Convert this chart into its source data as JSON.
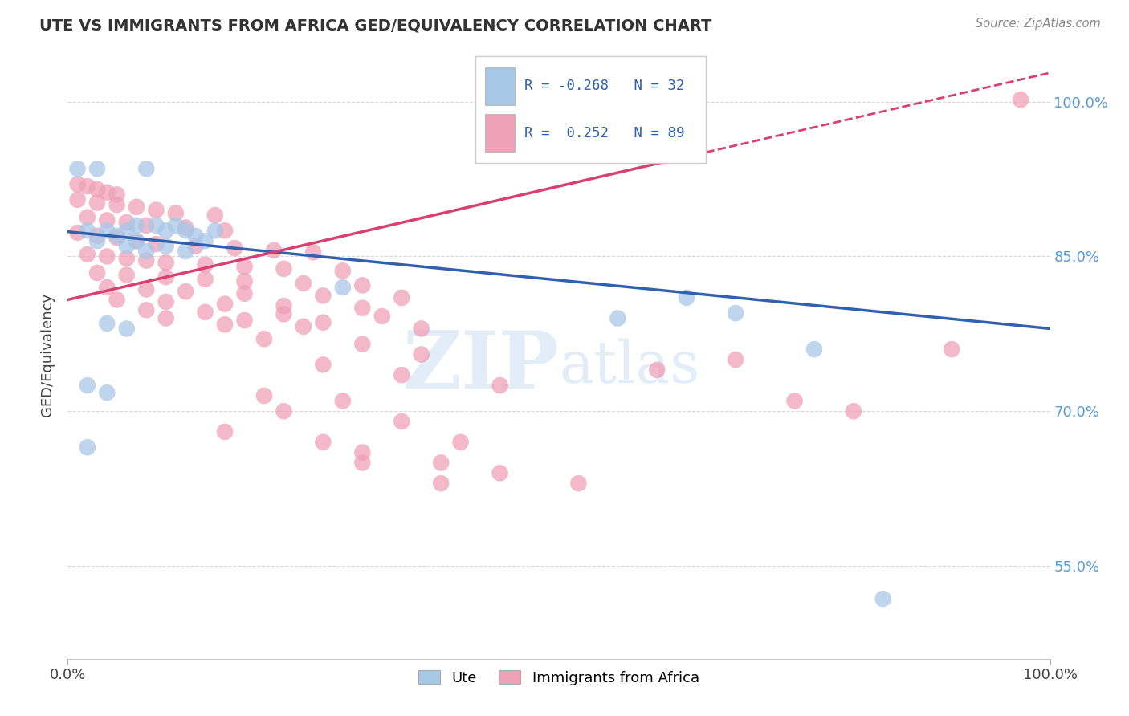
{
  "title": "UTE VS IMMIGRANTS FROM AFRICA GED/EQUIVALENCY CORRELATION CHART",
  "source": "Source: ZipAtlas.com",
  "ylabel": "GED/Equivalency",
  "watermark": "ZIPatlas",
  "ute_R": -0.268,
  "ute_N": 32,
  "africa_R": 0.252,
  "africa_N": 89,
  "ute_color": "#a8c8e8",
  "africa_color": "#f0a0b8",
  "ute_line_color": "#3060b0",
  "africa_line_color": "#d84070",
  "background_color": "#ffffff",
  "grid_color": "#d0d0d0",
  "ytick_labels": [
    "55.0%",
    "70.0%",
    "85.0%",
    "100.0%"
  ],
  "ytick_values": [
    0.55,
    0.7,
    0.85,
    1.0
  ],
  "xlim": [
    0.0,
    1.0
  ],
  "ylim": [
    0.46,
    1.05
  ],
  "ute_intercept": 0.874,
  "ute_slope": -0.094,
  "africa_intercept": 0.808,
  "africa_slope": 0.22,
  "ute_points_x": [
    0.01,
    0.03,
    0.08,
    0.02,
    0.04,
    0.06,
    0.1,
    0.12,
    0.15,
    0.07,
    0.09,
    0.11,
    0.05,
    0.13,
    0.03,
    0.07,
    0.14,
    0.06,
    0.1,
    0.08,
    0.12,
    0.28,
    0.04,
    0.06,
    0.02,
    0.04,
    0.02,
    0.56,
    0.63,
    0.68,
    0.76,
    0.83
  ],
  "ute_points_y": [
    0.935,
    0.935,
    0.935,
    0.875,
    0.875,
    0.875,
    0.875,
    0.875,
    0.875,
    0.88,
    0.88,
    0.88,
    0.87,
    0.87,
    0.865,
    0.865,
    0.865,
    0.86,
    0.86,
    0.855,
    0.855,
    0.82,
    0.785,
    0.78,
    0.725,
    0.718,
    0.665,
    0.79,
    0.81,
    0.795,
    0.76,
    0.518
  ],
  "africa_points_x": [
    0.01,
    0.02,
    0.03,
    0.04,
    0.05,
    0.01,
    0.03,
    0.05,
    0.07,
    0.09,
    0.11,
    0.15,
    0.02,
    0.04,
    0.06,
    0.08,
    0.12,
    0.16,
    0.01,
    0.03,
    0.05,
    0.07,
    0.09,
    0.13,
    0.17,
    0.21,
    0.25,
    0.02,
    0.04,
    0.06,
    0.08,
    0.1,
    0.14,
    0.18,
    0.22,
    0.28,
    0.03,
    0.06,
    0.1,
    0.14,
    0.18,
    0.24,
    0.3,
    0.04,
    0.08,
    0.12,
    0.18,
    0.26,
    0.34,
    0.05,
    0.1,
    0.16,
    0.22,
    0.3,
    0.08,
    0.14,
    0.22,
    0.32,
    0.1,
    0.18,
    0.26,
    0.16,
    0.24,
    0.36,
    0.2,
    0.3,
    0.36,
    0.26,
    0.34,
    0.44,
    0.2,
    0.28,
    0.22,
    0.34,
    0.16,
    0.26,
    0.3,
    0.38,
    0.44,
    0.52,
    0.6,
    0.68,
    0.74,
    0.8,
    0.9,
    0.97,
    0.4,
    0.3,
    0.38
  ],
  "africa_points_y": [
    0.92,
    0.918,
    0.915,
    0.912,
    0.91,
    0.905,
    0.902,
    0.9,
    0.898,
    0.895,
    0.892,
    0.89,
    0.888,
    0.885,
    0.883,
    0.88,
    0.878,
    0.875,
    0.873,
    0.87,
    0.868,
    0.865,
    0.862,
    0.86,
    0.858,
    0.856,
    0.854,
    0.852,
    0.85,
    0.848,
    0.846,
    0.844,
    0.842,
    0.84,
    0.838,
    0.836,
    0.834,
    0.832,
    0.83,
    0.828,
    0.826,
    0.824,
    0.822,
    0.82,
    0.818,
    0.816,
    0.814,
    0.812,
    0.81,
    0.808,
    0.806,
    0.804,
    0.802,
    0.8,
    0.798,
    0.796,
    0.794,
    0.792,
    0.79,
    0.788,
    0.786,
    0.784,
    0.782,
    0.78,
    0.77,
    0.765,
    0.755,
    0.745,
    0.735,
    0.725,
    0.715,
    0.71,
    0.7,
    0.69,
    0.68,
    0.67,
    0.66,
    0.65,
    0.64,
    0.63,
    0.74,
    0.75,
    0.71,
    0.7,
    0.76,
    1.002,
    0.67,
    0.65,
    0.63
  ]
}
